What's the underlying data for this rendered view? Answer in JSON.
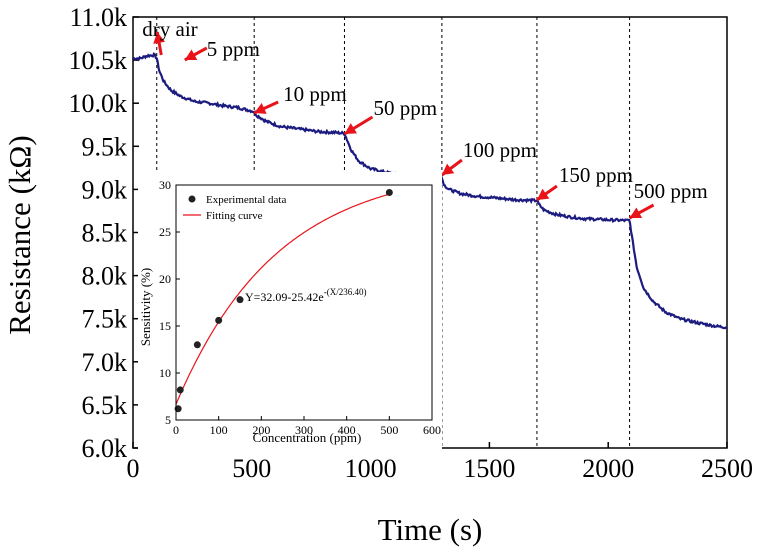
{
  "chart_data": [
    {
      "type": "line",
      "xlabel": "Time (s)",
      "ylabel": "Resistance (kΩ)",
      "xlim": [
        0,
        2500
      ],
      "ylim": [
        6.0,
        11.0
      ],
      "xticks": [
        0,
        500,
        1000,
        1500,
        2000,
        2500
      ],
      "xtick_labels": [
        "0",
        "500",
        "1000",
        "1500",
        "2000",
        "2500"
      ],
      "yticks": [
        6.0,
        6.5,
        7.0,
        7.5,
        8.0,
        8.5,
        9.0,
        9.5,
        10.0,
        10.5,
        11.0
      ],
      "ytick_labels": [
        "6.0k",
        "6.5k",
        "7.0k",
        "7.5k",
        "8.0k",
        "8.5k",
        "9.0k",
        "9.5k",
        "10.0k",
        "10.5k",
        "11.0k"
      ],
      "line_color": "#1c1c80",
      "arrow_color": "#e8141a",
      "dividers": [
        100,
        510,
        890,
        1300,
        1700,
        2090
      ],
      "series": [
        {
          "name": "Resistance",
          "x": [
            0,
            30,
            60,
            90,
            100,
            110,
            130,
            160,
            200,
            260,
            320,
            380,
            440,
            500,
            510,
            520,
            560,
            620,
            700,
            780,
            850,
            890,
            900,
            920,
            950,
            1000,
            1060,
            1120,
            1180,
            1240,
            1300,
            1310,
            1330,
            1380,
            1450,
            1530,
            1610,
            1700,
            1710,
            1730,
            1780,
            1840,
            1900,
            1980,
            2060,
            2090,
            2100,
            2120,
            2150,
            2190,
            2240,
            2300,
            2380,
            2460,
            2500
          ],
          "y": [
            10.52,
            10.52,
            10.55,
            10.56,
            10.52,
            10.38,
            10.25,
            10.15,
            10.08,
            10.02,
            10.0,
            9.97,
            9.95,
            9.91,
            9.9,
            9.86,
            9.79,
            9.73,
            9.7,
            9.67,
            9.66,
            9.65,
            9.58,
            9.45,
            9.33,
            9.24,
            9.2,
            9.17,
            9.15,
            9.14,
            9.13,
            9.05,
            9.0,
            8.95,
            8.92,
            8.9,
            8.88,
            8.87,
            8.82,
            8.76,
            8.71,
            8.68,
            8.66,
            8.65,
            8.64,
            8.64,
            8.45,
            8.1,
            7.85,
            7.7,
            7.58,
            7.5,
            7.45,
            7.41,
            7.4
          ]
        }
      ],
      "annotations": [
        {
          "text": "dry air",
          "x": 60
        },
        {
          "text": "5 ppm",
          "x": 100
        },
        {
          "text": "10 ppm",
          "x": 510
        },
        {
          "text": "50 ppm",
          "x": 890
        },
        {
          "text": "100 ppm",
          "x": 1300
        },
        {
          "text": "150 ppm",
          "x": 1700
        },
        {
          "text": "500 ppm",
          "x": 2090
        }
      ]
    },
    {
      "type": "scatter",
      "xlabel": "Concentration (ppm)",
      "ylabel": "Sensitivity (%)",
      "xlim": [
        0,
        600
      ],
      "ylim": [
        5,
        30
      ],
      "xticks": [
        0,
        100,
        200,
        300,
        400,
        500,
        600
      ],
      "xtick_labels": [
        "0",
        "100",
        "200",
        "300",
        "400",
        "500",
        "600"
      ],
      "yticks": [
        5,
        10,
        15,
        20,
        25,
        30
      ],
      "ytick_labels": [
        "5",
        "10",
        "15",
        "20",
        "25",
        "30"
      ],
      "legend": [
        "Experimental data",
        "Fitting curve"
      ],
      "fit_color": "#e8141a",
      "equation": {
        "base": "Y=32.09-25.42e",
        "exponent": "-(X/236.40)"
      },
      "fit": {
        "a": 32.09,
        "b": 25.42,
        "c": 236.4
      },
      "points": {
        "x": [
          5,
          10,
          50,
          100,
          150,
          500
        ],
        "y": [
          6.2,
          8.2,
          13.0,
          15.6,
          17.8,
          29.2
        ]
      }
    }
  ]
}
